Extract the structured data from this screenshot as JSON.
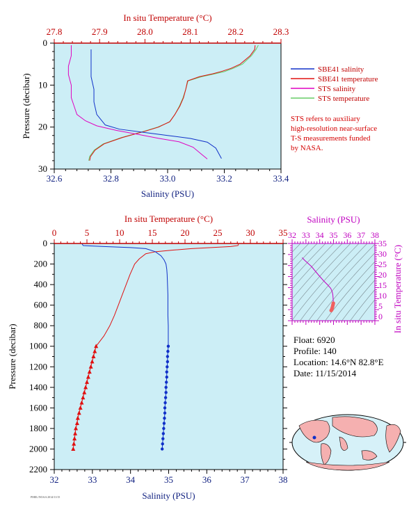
{
  "colors": {
    "plot_bg": "#cceef6",
    "salinity": "#1030c8",
    "temperature": "#e01010",
    "sts_salinity": "#e000c0",
    "sts_temperature": "#66cc66",
    "axis_blue": "#102080",
    "axis_red": "#c00000",
    "axis_magenta": "#c000c0"
  },
  "legend": {
    "items": [
      {
        "label": "SBE41 salinity",
        "color": "#1030c8"
      },
      {
        "label": "SBE41 temperature",
        "color": "#e01010"
      },
      {
        "label": "STS salinity",
        "color": "#e000c0"
      },
      {
        "label": "STS temperature",
        "color": "#66cc66"
      }
    ]
  },
  "note": {
    "lines": [
      "STS refers to auxiliary",
      "high-resolution near-surface",
      "T-S measurements funded",
      "by NASA."
    ]
  },
  "info": {
    "float": "Float:  6920",
    "profile": "Profile:  140",
    "location": "Location:  14.6°N  82.8°E",
    "date": "Date:  11/15/2014"
  },
  "footer": "PMEL/NOAA 2014/11/15",
  "chart_data": [
    {
      "id": "near-surface",
      "type": "line",
      "title": "In situ Temperature (°C)",
      "xlabel": "Salinity (PSU)",
      "ylabel": "Pressure (decibar)",
      "x_salinity_range": [
        32.6,
        33.4
      ],
      "x_salinity_ticks": [
        "32.6",
        "32.8",
        "33.0",
        "33.2",
        "33.4"
      ],
      "x_temperature_range": [
        27.8,
        28.3
      ],
      "x_temperature_ticks": [
        "27.8",
        "27.9",
        "28.0",
        "28.1",
        "28.2",
        "28.3"
      ],
      "y_range": [
        0,
        30
      ],
      "y_ticks": [
        "0",
        "10",
        "20",
        "30"
      ],
      "series": [
        {
          "name": "SBE41 salinity",
          "axis": "salinity",
          "points": [
            [
              32.73,
              1.5
            ],
            [
              32.73,
              4
            ],
            [
              32.73,
              8
            ],
            [
              32.74,
              11
            ],
            [
              32.74,
              14
            ],
            [
              32.75,
              17
            ],
            [
              32.78,
              19.5
            ],
            [
              32.83,
              20.5
            ],
            [
              32.92,
              21.3
            ],
            [
              33.0,
              22
            ],
            [
              33.08,
              22.7
            ],
            [
              33.14,
              23.6
            ],
            [
              33.17,
              25
            ],
            [
              33.19,
              27.5
            ]
          ]
        },
        {
          "name": "SBE41 temperature",
          "axis": "temperature",
          "points": [
            [
              28.243,
              0.5
            ],
            [
              28.242,
              1.5
            ],
            [
              28.232,
              3
            ],
            [
              28.21,
              5
            ],
            [
              28.19,
              6
            ],
            [
              28.17,
              6.7
            ],
            [
              28.15,
              7.3
            ],
            [
              28.12,
              8
            ],
            [
              28.094,
              9
            ],
            [
              28.09,
              11
            ],
            [
              28.085,
              13
            ],
            [
              28.077,
              15
            ],
            [
              28.066,
              17
            ],
            [
              28.055,
              18.7
            ],
            [
              28.03,
              20
            ],
            [
              28.0,
              21
            ],
            [
              27.95,
              22.5
            ],
            [
              27.91,
              24
            ],
            [
              27.89,
              25.5
            ],
            [
              27.88,
              27
            ],
            [
              27.878,
              28
            ]
          ]
        },
        {
          "name": "STS salinity",
          "axis": "salinity",
          "points": [
            [
              32.66,
              0.5
            ],
            [
              32.66,
              3
            ],
            [
              32.65,
              5.5
            ],
            [
              32.65,
              7.5
            ],
            [
              32.66,
              10
            ],
            [
              32.66,
              13
            ],
            [
              32.67,
              15
            ],
            [
              32.68,
              17
            ],
            [
              32.71,
              18.5
            ],
            [
              32.75,
              19.7
            ],
            [
              32.82,
              20.8
            ],
            [
              32.9,
              21.8
            ],
            [
              32.97,
              22.7
            ],
            [
              33.04,
              23.5
            ],
            [
              33.09,
              24.8
            ],
            [
              33.12,
              26.5
            ],
            [
              33.14,
              27.6
            ]
          ]
        },
        {
          "name": "STS temperature",
          "axis": "temperature",
          "points": [
            [
              28.25,
              0.5
            ],
            [
              28.245,
              1.5
            ],
            [
              28.235,
              3
            ],
            [
              28.215,
              5
            ],
            [
              28.195,
              6
            ],
            [
              28.175,
              6.8
            ],
            [
              28.155,
              7.3
            ],
            [
              28.125,
              8
            ],
            [
              28.095,
              9
            ],
            [
              28.09,
              11
            ],
            [
              28.084,
              13
            ],
            [
              28.076,
              15
            ],
            [
              28.066,
              17
            ],
            [
              28.054,
              18.8
            ],
            [
              28.028,
              20
            ],
            [
              27.998,
              21
            ],
            [
              27.948,
              22.5
            ],
            [
              27.908,
              24
            ],
            [
              27.888,
              25.5
            ],
            [
              27.878,
              27
            ],
            [
              27.876,
              28
            ]
          ]
        }
      ]
    },
    {
      "id": "full-profile",
      "type": "line",
      "title": "In situ Temperature (°C)",
      "xlabel": "Salinity (PSU)",
      "ylabel": "Pressure (decibar)",
      "x_salinity_range": [
        32,
        38
      ],
      "x_salinity_ticks": [
        "32",
        "33",
        "34",
        "35",
        "36",
        "37",
        "38"
      ],
      "x_temperature_range": [
        0,
        35
      ],
      "x_temperature_ticks": [
        "0",
        "5",
        "10",
        "15",
        "20",
        "25",
        "30",
        "35"
      ],
      "y_range": [
        0,
        2200
      ],
      "y_ticks": [
        "0",
        "200",
        "400",
        "600",
        "800",
        "1000",
        "1200",
        "1400",
        "1600",
        "1800",
        "2000",
        "2200"
      ],
      "series": [
        {
          "name": "SBE41 salinity",
          "axis": "salinity",
          "points": [
            [
              32.73,
              5
            ],
            [
              32.76,
              20
            ],
            [
              33.3,
              30
            ],
            [
              34.0,
              40
            ],
            [
              34.4,
              50
            ],
            [
              34.65,
              80
            ],
            [
              34.8,
              120
            ],
            [
              34.88,
              160
            ],
            [
              34.93,
              200
            ],
            [
              34.95,
              250
            ],
            [
              34.96,
              300
            ],
            [
              34.97,
              400
            ],
            [
              34.98,
              500
            ],
            [
              34.98,
              600
            ],
            [
              34.98,
              700
            ],
            [
              34.99,
              800
            ],
            [
              34.99,
              900
            ],
            [
              34.99,
              1000
            ]
          ],
          "markers": [
            [
              34.99,
              1000
            ],
            [
              34.98,
              1050
            ],
            [
              34.97,
              1100
            ],
            [
              34.97,
              1150
            ],
            [
              34.96,
              1200
            ],
            [
              34.95,
              1250
            ],
            [
              34.95,
              1300
            ],
            [
              34.94,
              1350
            ],
            [
              34.93,
              1400
            ],
            [
              34.93,
              1450
            ],
            [
              34.92,
              1500
            ],
            [
              34.91,
              1550
            ],
            [
              34.9,
              1600
            ],
            [
              34.9,
              1650
            ],
            [
              34.89,
              1700
            ],
            [
              34.88,
              1750
            ],
            [
              34.87,
              1800
            ],
            [
              34.86,
              1850
            ],
            [
              34.85,
              1900
            ],
            [
              34.84,
              1950
            ],
            [
              34.83,
              2000
            ]
          ]
        },
        {
          "name": "SBE41 temperature",
          "axis": "temperature",
          "points": [
            [
              28.2,
              0
            ],
            [
              28.1,
              20
            ],
            [
              27.0,
              30
            ],
            [
              24.0,
              40
            ],
            [
              21.0,
              50
            ],
            [
              18.0,
              65
            ],
            [
              15.5,
              80
            ],
            [
              14.0,
              100
            ],
            [
              13.0,
              150
            ],
            [
              12.3,
              200
            ],
            [
              11.6,
              300
            ],
            [
              11.0,
              400
            ],
            [
              10.4,
              500
            ],
            [
              9.8,
              600
            ],
            [
              9.2,
              700
            ],
            [
              8.5,
              800
            ],
            [
              7.6,
              900
            ],
            [
              6.4,
              1000
            ]
          ],
          "markers": [
            [
              6.4,
              1000
            ],
            [
              6.2,
              1050
            ],
            [
              6.0,
              1100
            ],
            [
              5.8,
              1150
            ],
            [
              5.6,
              1200
            ],
            [
              5.4,
              1250
            ],
            [
              5.2,
              1300
            ],
            [
              5.0,
              1350
            ],
            [
              4.8,
              1400
            ],
            [
              4.6,
              1450
            ],
            [
              4.4,
              1500
            ],
            [
              4.2,
              1550
            ],
            [
              4.0,
              1600
            ],
            [
              3.8,
              1650
            ],
            [
              3.6,
              1700
            ],
            [
              3.5,
              1750
            ],
            [
              3.3,
              1800
            ],
            [
              3.2,
              1850
            ],
            [
              3.1,
              1900
            ],
            [
              3.0,
              1950
            ],
            [
              2.9,
              2000
            ]
          ]
        }
      ]
    },
    {
      "id": "ts-diagram",
      "type": "scatter",
      "title": "Salinity (PSU)",
      "ylabel": "In situ Temperature (°C)",
      "x_range": [
        32,
        38
      ],
      "x_ticks": [
        "32",
        "33",
        "34",
        "35",
        "36",
        "37",
        "38"
      ],
      "y_range": [
        -2,
        35
      ],
      "y_ticks": [
        "0",
        "5",
        "10",
        "15",
        "20",
        "25",
        "30",
        "35"
      ],
      "series": [
        {
          "name": "T-S profile",
          "points": [
            [
              32.73,
              28.2
            ],
            [
              32.9,
              27.0
            ],
            [
              33.4,
              24.0
            ],
            [
              33.9,
              20.0
            ],
            [
              34.3,
              17.0
            ],
            [
              34.6,
              15.0
            ],
            [
              34.8,
              13.5
            ],
            [
              34.9,
              12.0
            ],
            [
              34.95,
              10.5
            ],
            [
              34.97,
              9.0
            ],
            [
              34.98,
              7.5
            ],
            [
              34.99,
              6.4
            ]
          ],
          "markers": [
            [
              34.99,
              6.4
            ],
            [
              34.97,
              5.8
            ],
            [
              34.95,
              5.2
            ],
            [
              34.93,
              4.6
            ],
            [
              34.9,
              4.0
            ],
            [
              34.88,
              3.5
            ],
            [
              34.86,
              3.1
            ],
            [
              34.83,
              2.9
            ]
          ]
        }
      ]
    }
  ]
}
